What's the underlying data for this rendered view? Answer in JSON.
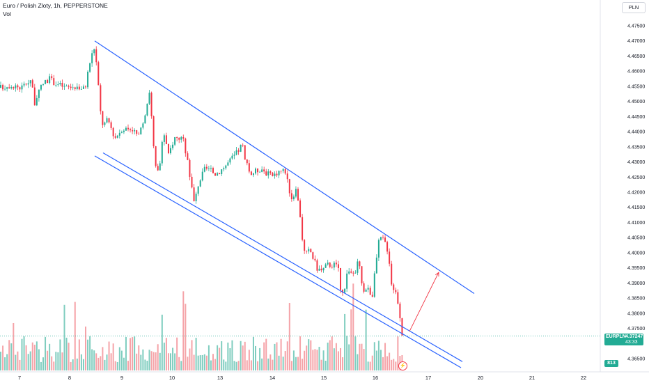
{
  "header": {
    "title": "Euro / Polish Zloty, 1h, PEPPERSTONE",
    "volume_label": "Vol",
    "currency_button": "PLN"
  },
  "price_tag": {
    "symbol": "EURPLN",
    "price": "4.37247",
    "countdown": "43:33",
    "color": "#22ab94"
  },
  "volume_tag": {
    "value": "813",
    "color": "#22ab94"
  },
  "icons": {
    "lightning": "lightning-icon"
  },
  "colors": {
    "up": "#22ab94",
    "down": "#f23645",
    "up_volume": "#7fcdbf",
    "down_volume": "#f5a3a8",
    "channel": "#2962ff"
  },
  "chart_data": {
    "type": "candlestick",
    "symbol": "EURPLN",
    "interval": "1h",
    "price_axis": {
      "min": 4.3635,
      "max": 4.4775,
      "ticks": [
        "4.47500",
        "4.47000",
        "4.46500",
        "4.46000",
        "4.45500",
        "4.45000",
        "4.44500",
        "4.44000",
        "4.43500",
        "4.43000",
        "4.42500",
        "4.42000",
        "4.41500",
        "4.41000",
        "4.40500",
        "4.40000",
        "4.39500",
        "4.39000",
        "4.38500",
        "4.38000",
        "4.37500",
        "4.36500"
      ],
      "position": "right"
    },
    "time_axis": {
      "labels": [
        "7",
        "8",
        "9",
        "10",
        "13",
        "14",
        "15",
        "16",
        "17",
        "20",
        "21",
        "22"
      ]
    },
    "last_price": 4.37247,
    "last_volume": 813,
    "grid": false,
    "legend": "none",
    "price_anchors": [
      [
        0,
        4.4545
      ],
      [
        15,
        4.4555
      ],
      [
        30,
        4.4545
      ],
      [
        45,
        4.4575
      ],
      [
        50,
        4.449
      ],
      [
        60,
        4.4555
      ],
      [
        70,
        4.4575
      ],
      [
        80,
        4.456
      ],
      [
        95,
        4.4545
      ],
      [
        110,
        4.455
      ],
      [
        122,
        4.454
      ],
      [
        128,
        4.462
      ],
      [
        135,
        4.468
      ],
      [
        140,
        4.46
      ],
      [
        143,
        4.448
      ],
      [
        148,
        4.442
      ],
      [
        155,
        4.444
      ],
      [
        165,
        4.438
      ],
      [
        175,
        4.441
      ],
      [
        190,
        4.441
      ],
      [
        200,
        4.438
      ],
      [
        210,
        4.448
      ],
      [
        215,
        4.454
      ],
      [
        220,
        4.436
      ],
      [
        225,
        4.425
      ],
      [
        230,
        4.43
      ],
      [
        235,
        4.44
      ],
      [
        242,
        4.432
      ],
      [
        250,
        4.438
      ],
      [
        262,
        4.438
      ],
      [
        270,
        4.43
      ],
      [
        275,
        4.422
      ],
      [
        279,
        4.416
      ],
      [
        285,
        4.423
      ],
      [
        295,
        4.428
      ],
      [
        310,
        4.426
      ],
      [
        325,
        4.429
      ],
      [
        340,
        4.433
      ],
      [
        348,
        4.436
      ],
      [
        352,
        4.43
      ],
      [
        360,
        4.426
      ],
      [
        375,
        4.428
      ],
      [
        390,
        4.425
      ],
      [
        400,
        4.427
      ],
      [
        410,
        4.427
      ],
      [
        418,
        4.418
      ],
      [
        425,
        4.42
      ],
      [
        430,
        4.415
      ],
      [
        434,
        4.405
      ],
      [
        438,
        4.399
      ],
      [
        445,
        4.401
      ],
      [
        455,
        4.395
      ],
      [
        462,
        4.394
      ],
      [
        470,
        4.396
      ],
      [
        480,
        4.396
      ],
      [
        486,
        4.395
      ],
      [
        490,
        4.385
      ],
      [
        495,
        4.389
      ],
      [
        500,
        4.395
      ],
      [
        508,
        4.392
      ],
      [
        515,
        4.398
      ],
      [
        520,
        4.388
      ],
      [
        528,
        4.388
      ],
      [
        535,
        4.386
      ],
      [
        540,
        4.397
      ],
      [
        545,
        4.405
      ],
      [
        552,
        4.404
      ],
      [
        558,
        4.4
      ],
      [
        562,
        4.39
      ],
      [
        566,
        4.388
      ],
      [
        570,
        4.386
      ],
      [
        574,
        4.38
      ],
      [
        578,
        4.3725
      ]
    ],
    "channel_lines": [
      {
        "name": "upper",
        "from": {
          "x_index": 136,
          "price": 4.47
        },
        "to": {
          "x_index": 681,
          "price": 4.3865
        }
      },
      {
        "name": "lower-1",
        "from": {
          "x_index": 148,
          "price": 4.433
        },
        "to": {
          "x_index": 664,
          "price": 4.364
        }
      },
      {
        "name": "lower-2",
        "from": {
          "x_index": 136,
          "price": 4.432
        },
        "to": {
          "x_index": 662,
          "price": 4.362
        }
      }
    ],
    "projection_arrow": {
      "from": {
        "x_index": 588,
        "price": 4.374
      },
      "to": {
        "x_index": 630,
        "price": 4.3935
      }
    }
  }
}
